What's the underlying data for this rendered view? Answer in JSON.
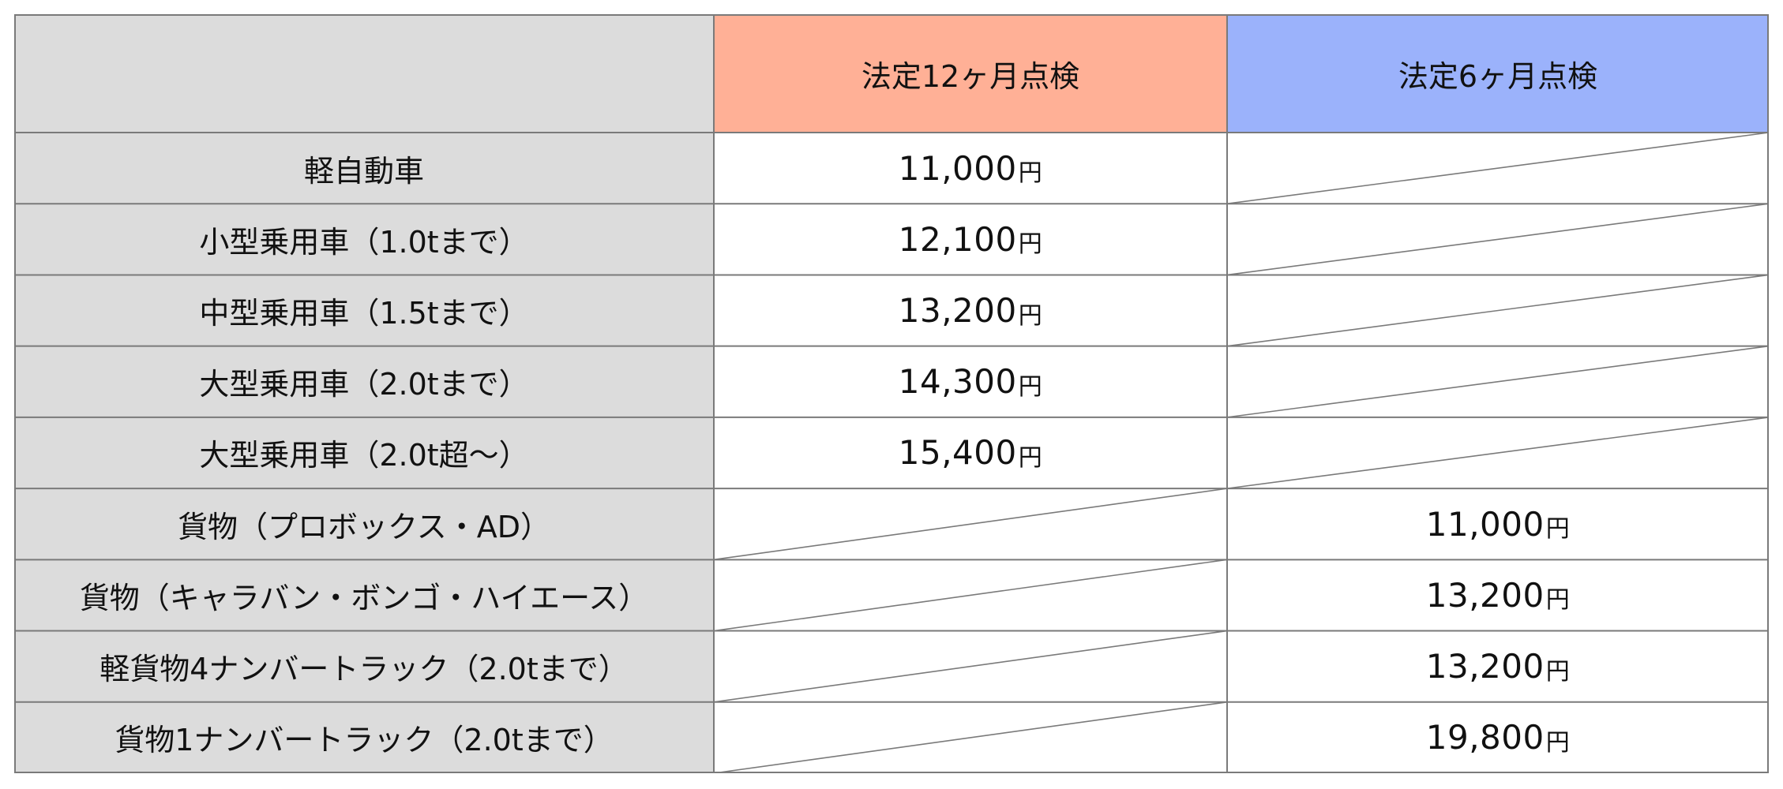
{
  "header": {
    "col_12month": "法定12ヶ月点検",
    "col_6month": "法定6ヶ月点検"
  },
  "colors": {
    "header_12month": "#ffb096",
    "header_6month": "#9bb2fb",
    "row_header_bg": "#dcdcdc",
    "border": "#7a7a7a"
  },
  "currency_suffix": "円",
  "rows": [
    {
      "label": "軽自動車",
      "price_12month": "11,000",
      "price_6month": null
    },
    {
      "label": "小型乗用車（1.0tまで）",
      "price_12month": "12,100",
      "price_6month": null
    },
    {
      "label": "中型乗用車（1.5tまで）",
      "price_12month": "13,200",
      "price_6month": null
    },
    {
      "label": "大型乗用車（2.0tまで）",
      "price_12month": "14,300",
      "price_6month": null
    },
    {
      "label": "大型乗用車（2.0t超〜）",
      "price_12month": "15,400",
      "price_6month": null
    },
    {
      "label": "貨物（プロボックス・AD）",
      "price_12month": null,
      "price_6month": "11,000"
    },
    {
      "label": "貨物（キャラバン・ボンゴ・ハイエース）",
      "price_12month": null,
      "price_6month": "13,200"
    },
    {
      "label": "軽貨物4ナンバートラック（2.0tまで）",
      "price_12month": null,
      "price_6month": "13,200"
    },
    {
      "label": "貨物1ナンバートラック（2.0tまで）",
      "price_12month": null,
      "price_6month": "19,800"
    }
  ]
}
